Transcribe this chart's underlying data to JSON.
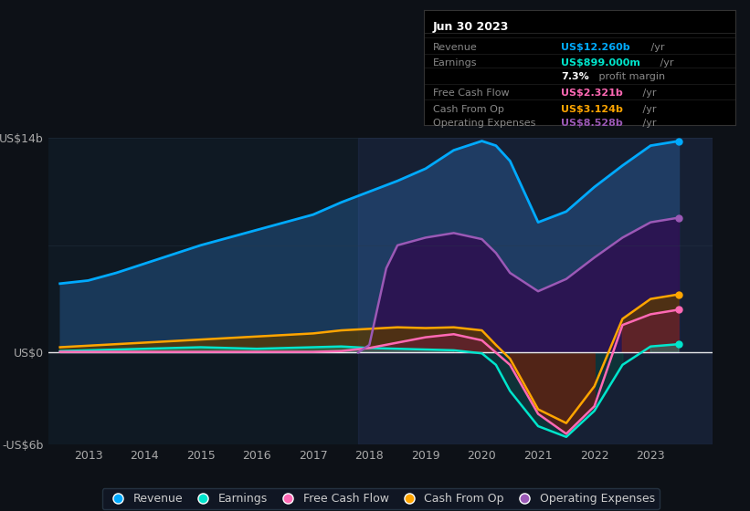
{
  "bg_color": "#0d1117",
  "chart_bg": "#0f1923",
  "ylim": [
    -6,
    14
  ],
  "xlabel_years": [
    2013,
    2014,
    2015,
    2016,
    2017,
    2018,
    2019,
    2020,
    2021,
    2022,
    2023
  ],
  "info_title": "Jun 30 2023",
  "info_rows": [
    {
      "label": "Revenue",
      "value": "US$12.260b",
      "suffix": " /yr",
      "value_color": "#00aaff",
      "bold_value": true
    },
    {
      "label": "Earnings",
      "value": "US$899.000m",
      "suffix": " /yr",
      "value_color": "#00e5cc",
      "bold_value": true
    },
    {
      "label": "",
      "value": "7.3%",
      "suffix": " profit margin",
      "value_color": "#ffffff",
      "bold_value": true
    },
    {
      "label": "Free Cash Flow",
      "value": "US$2.321b",
      "suffix": " /yr",
      "value_color": "#ff69b4",
      "bold_value": true
    },
    {
      "label": "Cash From Op",
      "value": "US$3.124b",
      "suffix": " /yr",
      "value_color": "#ffa500",
      "bold_value": true
    },
    {
      "label": "Operating Expenses",
      "value": "US$8.528b",
      "suffix": " /yr",
      "value_color": "#9b59b6",
      "bold_value": true
    }
  ],
  "series": {
    "Revenue": {
      "line_color": "#00aaff",
      "fill_color": "#1a3a5c",
      "x": [
        2012.5,
        2013.0,
        2013.5,
        2014.0,
        2014.5,
        2015.0,
        2015.5,
        2016.0,
        2016.5,
        2017.0,
        2017.5,
        2018.0,
        2018.5,
        2019.0,
        2019.5,
        2020.0,
        2020.25,
        2020.5,
        2021.0,
        2021.5,
        2022.0,
        2022.5,
        2023.0,
        2023.5
      ],
      "y": [
        4.5,
        4.7,
        5.2,
        5.8,
        6.4,
        7.0,
        7.5,
        8.0,
        8.5,
        9.0,
        9.8,
        10.5,
        11.2,
        12.0,
        13.2,
        13.8,
        13.5,
        12.5,
        8.5,
        9.2,
        10.8,
        12.2,
        13.5,
        13.8
      ]
    },
    "Earnings": {
      "line_color": "#00e5cc",
      "fill_color": "#00e5cc",
      "x": [
        2012.5,
        2013.0,
        2013.5,
        2014.0,
        2014.5,
        2015.0,
        2015.5,
        2016.0,
        2016.5,
        2017.0,
        2017.5,
        2018.0,
        2018.5,
        2019.0,
        2019.5,
        2020.0,
        2020.25,
        2020.5,
        2021.0,
        2021.5,
        2022.0,
        2022.5,
        2023.0,
        2023.5
      ],
      "y": [
        0.1,
        0.15,
        0.2,
        0.25,
        0.3,
        0.35,
        0.3,
        0.25,
        0.3,
        0.35,
        0.4,
        0.3,
        0.25,
        0.2,
        0.15,
        -0.05,
        -0.8,
        -2.5,
        -4.8,
        -5.5,
        -3.8,
        -0.8,
        0.4,
        0.55
      ]
    },
    "Free Cash Flow": {
      "line_color": "#ff69b4",
      "fill_color": "#ff69b4",
      "x": [
        2012.5,
        2013.0,
        2013.5,
        2014.0,
        2014.5,
        2015.0,
        2015.5,
        2016.0,
        2016.5,
        2017.0,
        2017.5,
        2018.0,
        2018.5,
        2019.0,
        2019.5,
        2020.0,
        2020.25,
        2020.5,
        2021.0,
        2021.5,
        2022.0,
        2022.5,
        2023.0,
        2023.5
      ],
      "y": [
        0.05,
        0.05,
        0.05,
        0.05,
        0.05,
        0.05,
        0.05,
        0.05,
        0.05,
        0.05,
        0.1,
        0.3,
        0.65,
        1.0,
        1.2,
        0.8,
        0.0,
        -0.8,
        -4.0,
        -5.3,
        -3.5,
        1.8,
        2.5,
        2.8
      ]
    },
    "Cash From Op": {
      "line_color": "#ffa500",
      "fill_color": "#7a5500",
      "x": [
        2012.5,
        2013.0,
        2013.5,
        2014.0,
        2014.5,
        2015.0,
        2015.5,
        2016.0,
        2016.5,
        2017.0,
        2017.5,
        2018.0,
        2018.5,
        2019.0,
        2019.5,
        2020.0,
        2020.25,
        2020.5,
        2021.0,
        2021.5,
        2022.0,
        2022.5,
        2023.0,
        2023.5
      ],
      "y": [
        0.35,
        0.45,
        0.55,
        0.65,
        0.75,
        0.85,
        0.95,
        1.05,
        1.15,
        1.25,
        1.45,
        1.55,
        1.65,
        1.6,
        1.65,
        1.45,
        0.5,
        -0.4,
        -3.7,
        -4.6,
        -2.2,
        2.2,
        3.5,
        3.8
      ]
    },
    "Operating Expenses": {
      "line_color": "#9b59b6",
      "fill_color": "#3d1466",
      "x": [
        2017.8,
        2018.0,
        2018.3,
        2018.5,
        2019.0,
        2019.5,
        2020.0,
        2020.25,
        2020.5,
        2021.0,
        2021.5,
        2022.0,
        2022.5,
        2023.0,
        2023.5
      ],
      "y": [
        0.0,
        0.5,
        5.5,
        7.0,
        7.5,
        7.8,
        7.4,
        6.5,
        5.2,
        4.0,
        4.8,
        6.2,
        7.5,
        8.5,
        8.8
      ]
    }
  },
  "legend": [
    {
      "label": "Revenue",
      "color": "#00aaff"
    },
    {
      "label": "Earnings",
      "color": "#00e5cc"
    },
    {
      "label": "Free Cash Flow",
      "color": "#ff69b4"
    },
    {
      "label": "Cash From Op",
      "color": "#ffa500"
    },
    {
      "label": "Operating Expenses",
      "color": "#9b59b6"
    }
  ]
}
